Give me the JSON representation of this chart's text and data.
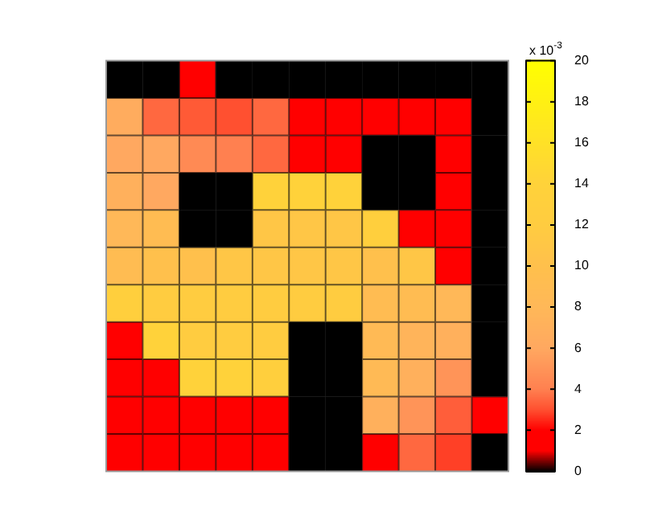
{
  "chart_data": {
    "type": "heatmap",
    "clabel": "x 10$^{-3}$",
    "clim": [
      0,
      20
    ],
    "cticks": [
      0,
      2,
      4,
      6,
      8,
      10,
      12,
      14,
      16,
      18,
      20
    ],
    "tick_labels": false,
    "categories": [
      null,
      null,
      null,
      null,
      null,
      null,
      null,
      null,
      null,
      null,
      null
    ],
    "y_categories": [
      null,
      null,
      null,
      null,
      null,
      null,
      null,
      null,
      null,
      null,
      null
    ],
    "cells": [
      [
        0,
        0,
        2,
        0,
        0,
        0,
        0,
        0,
        0,
        0,
        0
      ],
      [
        6.5,
        3.5,
        3.2,
        3,
        3.5,
        2,
        2,
        2,
        2,
        2,
        0
      ],
      [
        6,
        6,
        4.5,
        4,
        3.5,
        2,
        2,
        0,
        0,
        2,
        0
      ],
      [
        7,
        6,
        0,
        0,
        14,
        14,
        14,
        0,
        0,
        2,
        0
      ],
      [
        8,
        9,
        0,
        0,
        11,
        11,
        11,
        13,
        2,
        2,
        0
      ],
      [
        9,
        10,
        10,
        11,
        11,
        11,
        11,
        10,
        11,
        2,
        0
      ],
      [
        13,
        12,
        12,
        12,
        12,
        12,
        12,
        9,
        9,
        8,
        0
      ],
      [
        2,
        14,
        12,
        12,
        12,
        0,
        0,
        8.5,
        7.5,
        7,
        0
      ],
      [
        2,
        2,
        14,
        14,
        13,
        0,
        0,
        8.5,
        7,
        5,
        0
      ],
      [
        2,
        2,
        2,
        2,
        2,
        0,
        0,
        7,
        5,
        3.3,
        2
      ],
      [
        2,
        2,
        2,
        2,
        2,
        0,
        0,
        2,
        3.5,
        2.8,
        0
      ]
    ]
  }
}
